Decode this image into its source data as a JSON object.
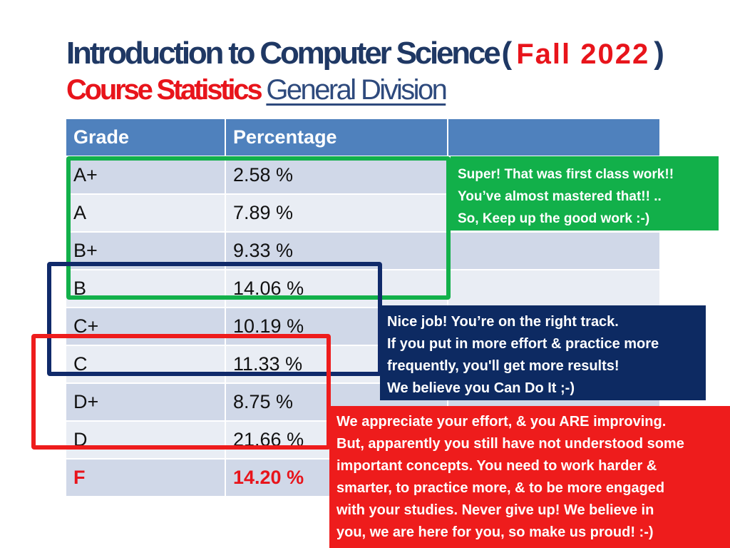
{
  "title": {
    "main": "Introduction to Computer Science",
    "paren_open": "(",
    "term": "Fall 2022",
    "paren_close": ")",
    "subtitle_red": "Course Statistics",
    "subtitle_division": "General Division"
  },
  "table": {
    "headers": [
      "Grade",
      "Percentage",
      ""
    ],
    "rows": [
      {
        "grade": "A+",
        "percentage": "2.58 %"
      },
      {
        "grade": "A",
        "percentage": "7.89 %"
      },
      {
        "grade": "B+",
        "percentage": "9.33 %"
      },
      {
        "grade": "B",
        "percentage": "14.06 %"
      },
      {
        "grade": "C+",
        "percentage": "10.19 %"
      },
      {
        "grade": "C",
        "percentage": "11.33 %"
      },
      {
        "grade": "D+",
        "percentage": "8.75 %"
      },
      {
        "grade": "D",
        "percentage": "21.66 %"
      },
      {
        "grade": "F",
        "percentage": "14.20 %"
      }
    ]
  },
  "notes": {
    "green": [
      "Super! That was first class work!!",
      "You’ve almost mastered that!! ..",
      "So, Keep up the good work  :-)"
    ],
    "navy": [
      "Nice job! You’re on the right track.",
      "If you put in more effort & practice more",
      "frequently, you'll get more results!",
      "We believe you Can Do It  ;-)"
    ],
    "red": [
      "We appreciate your effort, & you ARE improving.",
      "But, apparently you still have not understood some",
      "important concepts. You need to work harder &",
      "smarter, to practice more, & to be more engaged",
      "with your studies. Never give up! We believe in",
      "you, we are here for you, so make us proud! :-)"
    ]
  },
  "colors": {
    "title_navy": "#1f3864",
    "accent_red": "#e8141b",
    "header_blue": "#4f81bd",
    "green": "#12b04a",
    "navy": "#0d2a62"
  }
}
